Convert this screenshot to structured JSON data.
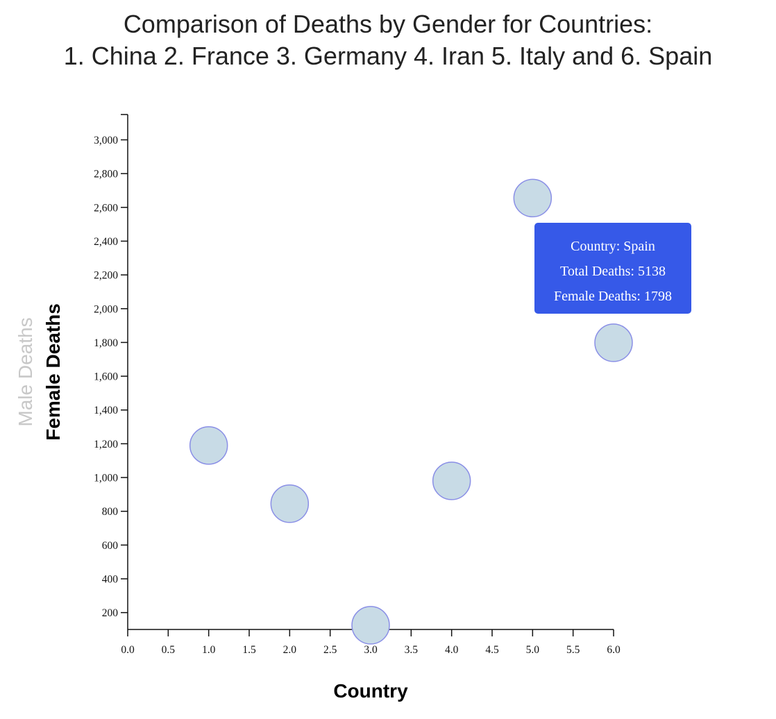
{
  "chart_data": {
    "type": "scatter",
    "title_lines": [
      "Comparison of Deaths by Gender for Countries:",
      "1. China 2. France 3. Germany 4. Iran 5. Italy and 6. Spain"
    ],
    "xlabel": "Country",
    "ylabel_options": [
      "Male Deaths",
      "Female Deaths"
    ],
    "ylabel_active": "Female Deaths",
    "xlim": [
      0,
      6
    ],
    "ylim": [
      100,
      3150
    ],
    "x_ticks": [
      "0.0",
      "0.5",
      "1.0",
      "1.5",
      "2.0",
      "2.5",
      "3.0",
      "3.5",
      "4.0",
      "4.5",
      "5.0",
      "5.5",
      "6.0"
    ],
    "y_ticks": [
      "200",
      "400",
      "600",
      "800",
      "1,000",
      "1,200",
      "1,400",
      "1,600",
      "1,800",
      "2,000",
      "2,200",
      "2,400",
      "2,600",
      "2,800",
      "3,000"
    ],
    "points": [
      {
        "x": 1,
        "y": 1190
      },
      {
        "x": 2,
        "y": 845
      },
      {
        "x": 3,
        "y": 125
      },
      {
        "x": 4,
        "y": 980
      },
      {
        "x": 5,
        "y": 2655
      },
      {
        "x": 6,
        "y": 1798
      }
    ],
    "grid": false,
    "point_color": "#c8dbe6",
    "point_stroke": "#8a8fe6"
  },
  "tooltip": {
    "line1": "Country: Spain",
    "line2": "Total Deaths: 5138",
    "line3": "Female Deaths: 1798",
    "background": "#3659e8"
  }
}
